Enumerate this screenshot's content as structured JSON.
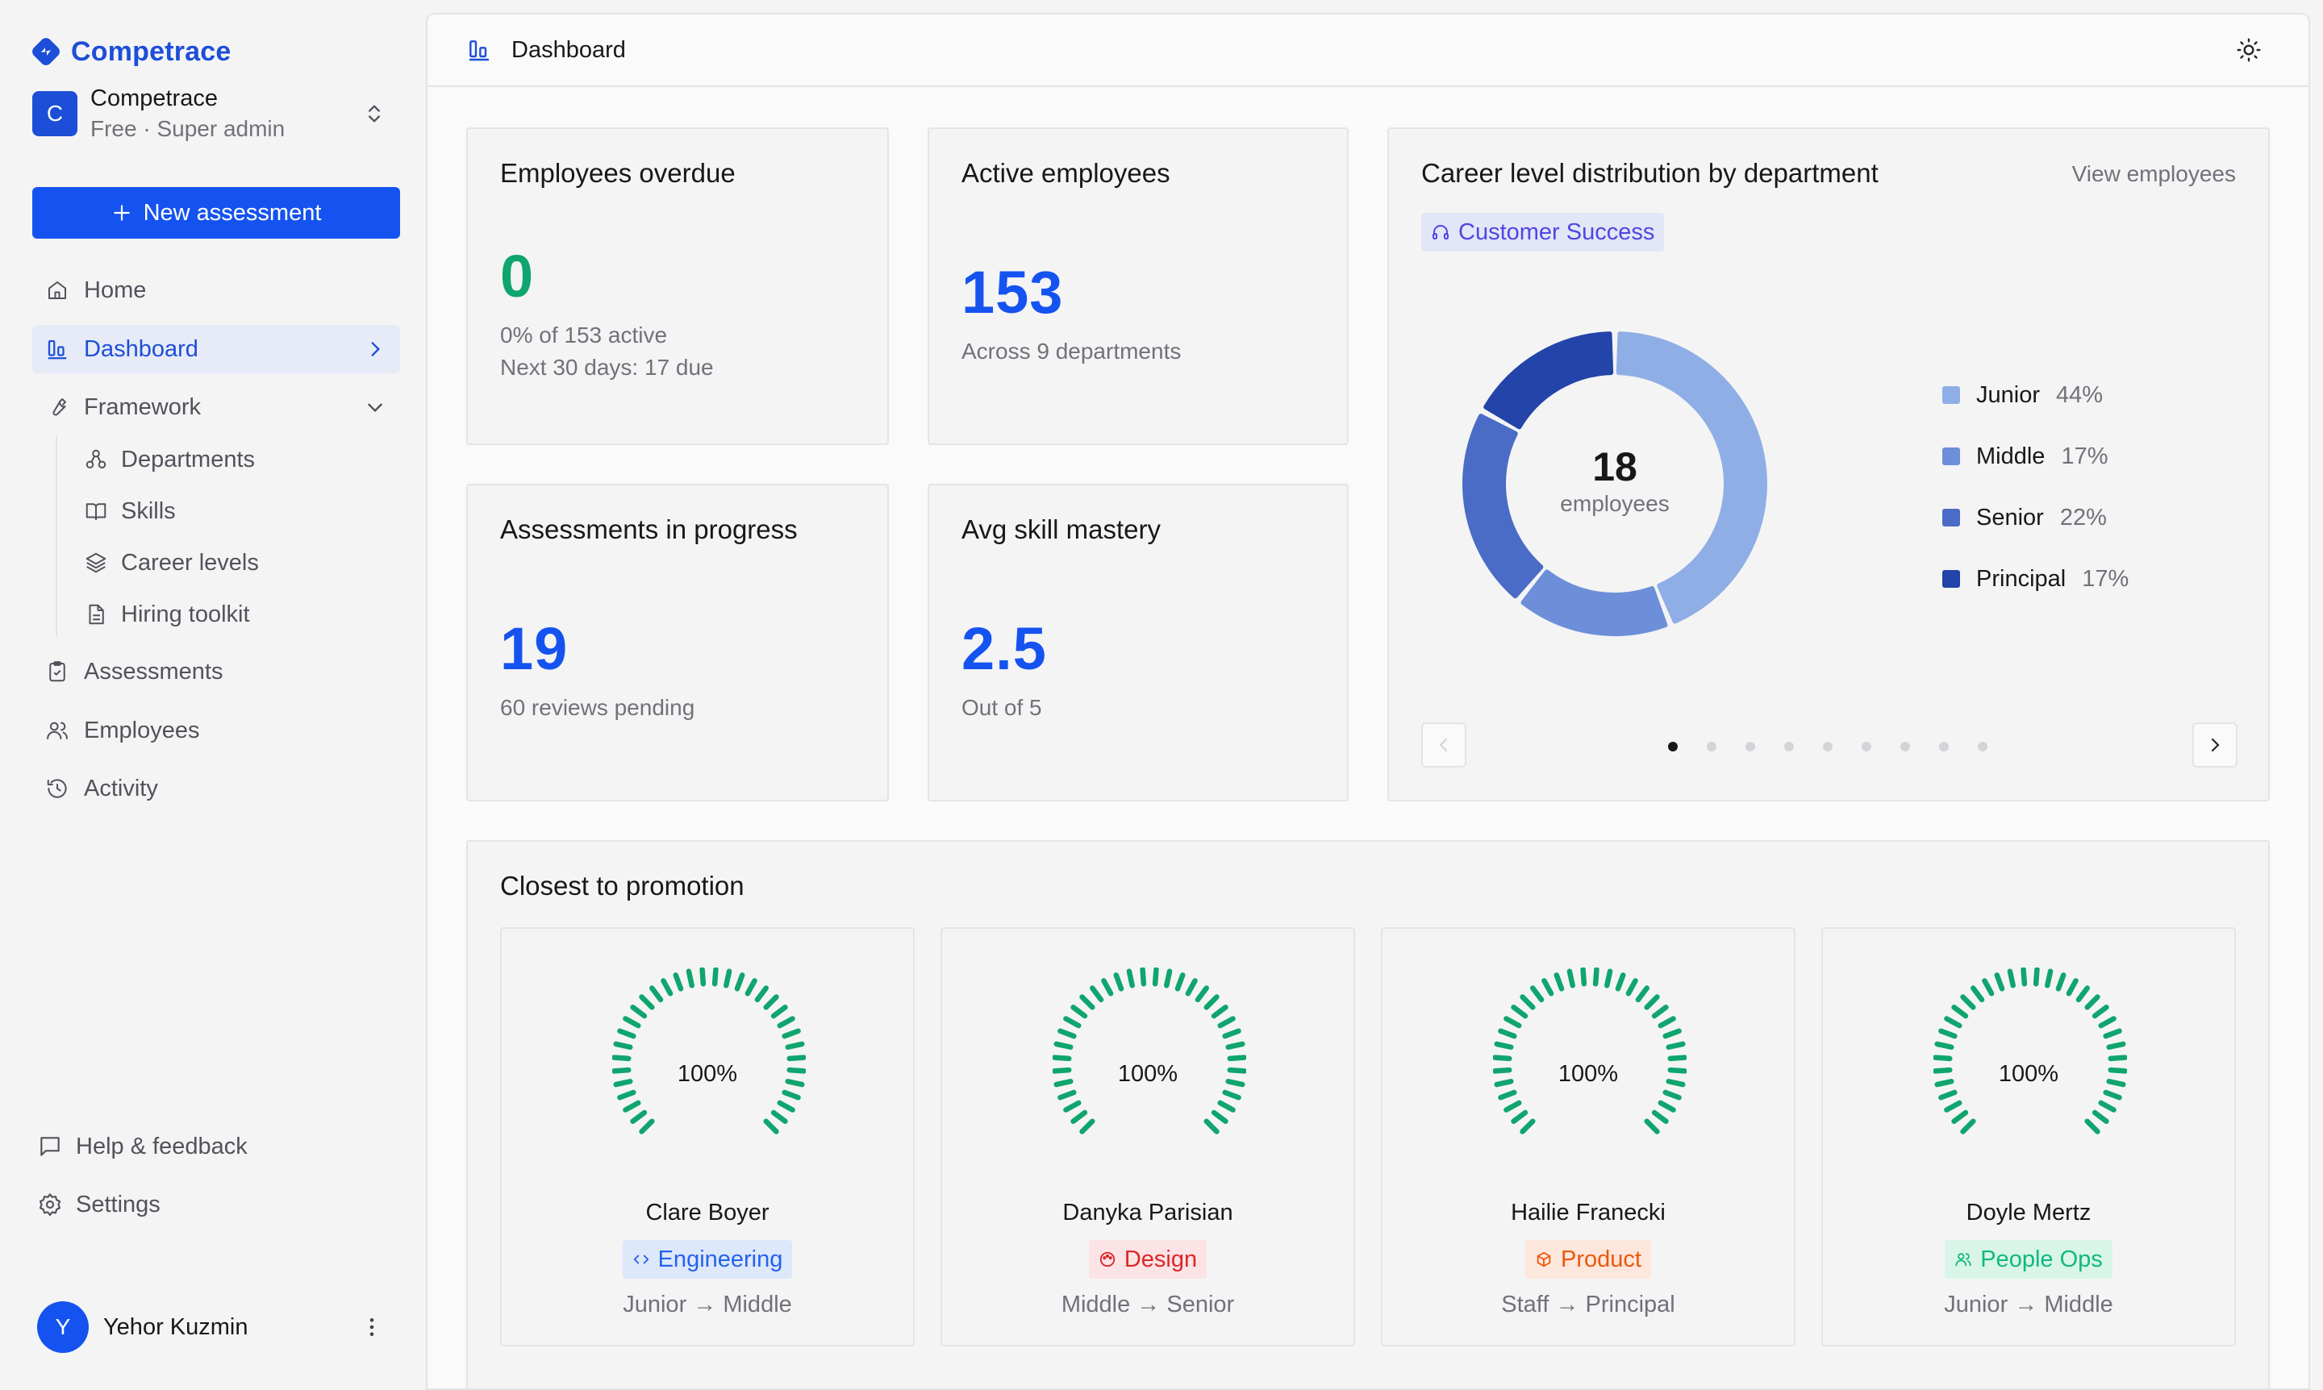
{
  "brand": {
    "name": "Competrace"
  },
  "workspace": {
    "initial": "C",
    "name": "Competrace",
    "subtitle": "Free · Super admin"
  },
  "sidebar": {
    "new_button": "New assessment",
    "nav": {
      "home": "Home",
      "dashboard": "Dashboard",
      "framework": "Framework",
      "departments": "Departments",
      "skills": "Skills",
      "career_levels": "Career levels",
      "hiring_toolkit": "Hiring toolkit",
      "assessments": "Assessments",
      "employees": "Employees",
      "activity": "Activity"
    },
    "footer": {
      "help": "Help & feedback",
      "settings": "Settings"
    },
    "user": {
      "initial": "Y",
      "name": "Yehor Kuzmin"
    }
  },
  "topbar": {
    "title": "Dashboard"
  },
  "kpis": {
    "overdue": {
      "title": "Employees overdue",
      "value": "0",
      "line1": "0% of 153 active",
      "line2": "Next 30 days: 17 due",
      "color": "#10a56e"
    },
    "active": {
      "title": "Active employees",
      "value": "153",
      "line1": "Across 9 departments",
      "color": "#1553f0"
    },
    "progress": {
      "title": "Assessments in progress",
      "value": "19",
      "line1": "60 reviews pending",
      "color": "#1553f0"
    },
    "mastery": {
      "title": "Avg skill mastery",
      "value": "2.5",
      "line1": "Out of 5",
      "color": "#1553f0"
    }
  },
  "career": {
    "title": "Career level distribution by department",
    "view_link": "View employees",
    "department": "Customer Success",
    "total": "18",
    "total_label": "employees",
    "pager": {
      "pages": 9,
      "current": 1
    },
    "chart_data": {
      "type": "pie",
      "categories": [
        "Junior",
        "Middle",
        "Senior",
        "Principal"
      ],
      "values": [
        44,
        17,
        22,
        17
      ],
      "labels": [
        "44%",
        "17%",
        "22%",
        "17%"
      ],
      "colors": [
        "#8faee6",
        "#6d8fd9",
        "#4a6cc6",
        "#2344a8"
      ]
    }
  },
  "promotion": {
    "title": "Closest to promotion",
    "people": [
      {
        "name": "Clare Boyer",
        "progress": 100,
        "progress_label": "100%",
        "department": "Engineering",
        "dept_icon": "code-icon",
        "chip_bg": "#dde8fb",
        "chip_fg": "#2563eb",
        "path": "Junior → Middle"
      },
      {
        "name": "Danyka Parisian",
        "progress": 100,
        "progress_label": "100%",
        "department": "Design",
        "dept_icon": "palette-icon",
        "chip_bg": "#fbe3e6",
        "chip_fg": "#dc2626",
        "path": "Middle → Senior"
      },
      {
        "name": "Hailie Franecki",
        "progress": 100,
        "progress_label": "100%",
        "department": "Product",
        "dept_icon": "box-icon",
        "chip_bg": "#fde6dc",
        "chip_fg": "#ea580c",
        "path": "Staff → Principal"
      },
      {
        "name": "Doyle Mertz",
        "progress": 100,
        "progress_label": "100%",
        "department": "People Ops",
        "dept_icon": "users-icon",
        "chip_bg": "#d9f5e8",
        "chip_fg": "#10b981",
        "path": "Junior → Middle"
      }
    ],
    "gauge_color": "#10a56e"
  }
}
